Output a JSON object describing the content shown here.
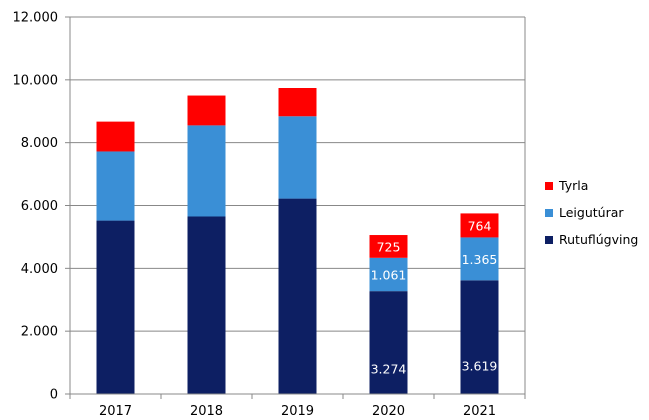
{
  "chart_data": {
    "type": "bar",
    "stacked": true,
    "categories": [
      "2017",
      "2018",
      "2019",
      "2020",
      "2021"
    ],
    "series": [
      {
        "name": "Rutuflúgving",
        "color": "#0d1f63",
        "values": [
          5520,
          5650,
          6220,
          3274,
          3619
        ],
        "labels": [
          "",
          "",
          "",
          "3.274",
          "3.619"
        ]
      },
      {
        "name": "Leigutúrar",
        "color": "#3a8fd6",
        "values": [
          2200,
          2900,
          2620,
          1061,
          1365
        ],
        "labels": [
          "",
          "",
          "",
          "1.061",
          "1.365"
        ]
      },
      {
        "name": "Tyrla",
        "color": "#ff0000",
        "values": [
          950,
          950,
          900,
          725,
          764
        ],
        "labels": [
          "",
          "",
          "",
          "725",
          "764"
        ]
      }
    ],
    "ylim": [
      0,
      12000
    ],
    "yticks": [
      0,
      2000,
      4000,
      6000,
      8000,
      10000,
      12000
    ],
    "ytick_labels": [
      "0",
      "2.000",
      "4.000",
      "6.000",
      "8.000",
      "10.000",
      "12.000"
    ],
    "grid": true,
    "legend_position": "right"
  }
}
